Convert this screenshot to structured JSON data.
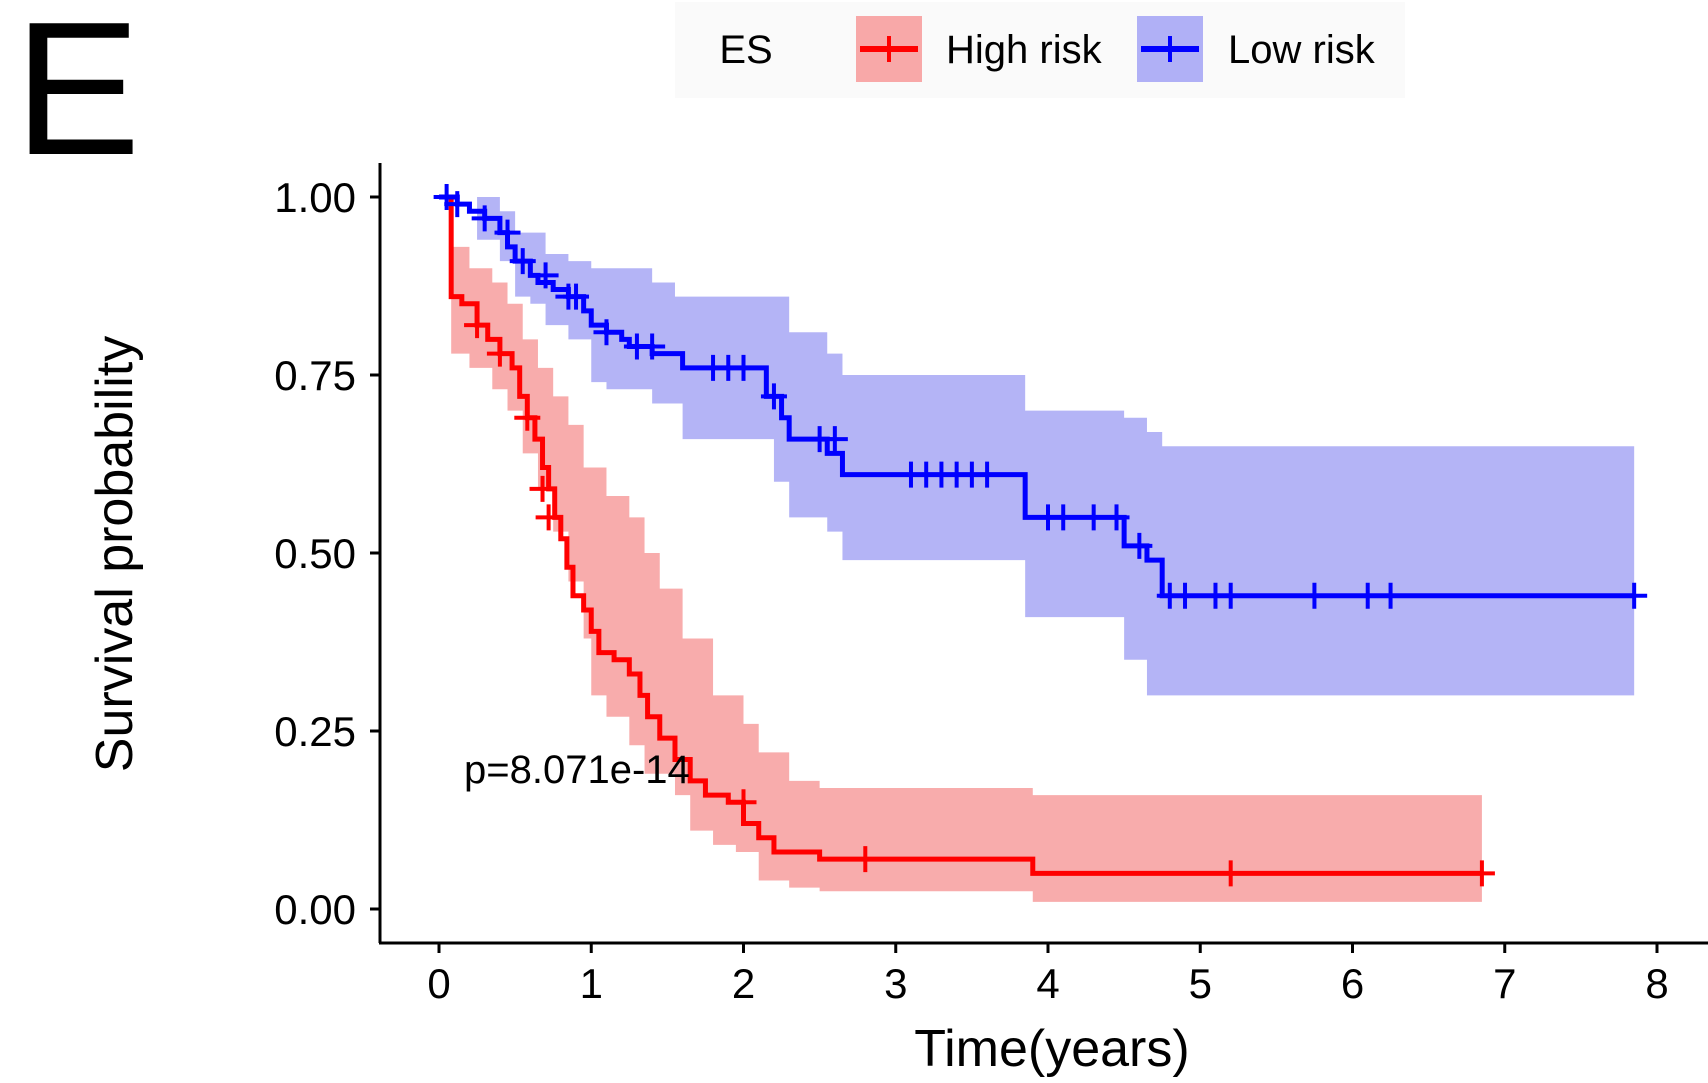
{
  "panel_label": "E",
  "legend": {
    "title": "ES",
    "items": [
      {
        "label": "High risk",
        "color": "#ff0000",
        "fill": "#f8a8a8"
      },
      {
        "label": "Low risk",
        "color": "#0000ff",
        "fill": "#b0b0f6"
      }
    ]
  },
  "annotation": "p=8.071e-14",
  "chart_data": {
    "type": "line",
    "subtype": "kaplan-meier",
    "xlabel": "Time(years)",
    "ylabel": "Survival probability",
    "xlim": [
      0,
      8
    ],
    "ylim": [
      0,
      1
    ],
    "x_ticks": [
      "0",
      "1",
      "2",
      "3",
      "4",
      "5",
      "6",
      "7",
      "8"
    ],
    "y_ticks": [
      "0.00",
      "0.25",
      "0.50",
      "0.75",
      "1.00"
    ],
    "grid": false,
    "legend_position": "top",
    "series": [
      {
        "name": "High risk",
        "color": "#ff0000",
        "ci_color": "#f8a8a8",
        "steps": [
          [
            0,
            1.0
          ],
          [
            0.08,
            0.86
          ],
          [
            0.15,
            0.85
          ],
          [
            0.25,
            0.82
          ],
          [
            0.32,
            0.8
          ],
          [
            0.4,
            0.78
          ],
          [
            0.48,
            0.76
          ],
          [
            0.53,
            0.72
          ],
          [
            0.58,
            0.69
          ],
          [
            0.63,
            0.66
          ],
          [
            0.68,
            0.62
          ],
          [
            0.72,
            0.59
          ],
          [
            0.76,
            0.55
          ],
          [
            0.8,
            0.52
          ],
          [
            0.84,
            0.48
          ],
          [
            0.88,
            0.44
          ],
          [
            0.95,
            0.42
          ],
          [
            1.0,
            0.39
          ],
          [
            1.05,
            0.36
          ],
          [
            1.15,
            0.35
          ],
          [
            1.25,
            0.33
          ],
          [
            1.32,
            0.3
          ],
          [
            1.37,
            0.27
          ],
          [
            1.45,
            0.24
          ],
          [
            1.55,
            0.21
          ],
          [
            1.65,
            0.18
          ],
          [
            1.75,
            0.16
          ],
          [
            1.9,
            0.15
          ],
          [
            2.0,
            0.12
          ],
          [
            2.1,
            0.1
          ],
          [
            2.2,
            0.08
          ],
          [
            2.5,
            0.07
          ],
          [
            3.9,
            0.05
          ],
          [
            6.85,
            0.05
          ]
        ],
        "ci_upper": [
          [
            0,
            1.0
          ],
          [
            0.08,
            0.93
          ],
          [
            0.2,
            0.9
          ],
          [
            0.35,
            0.88
          ],
          [
            0.45,
            0.85
          ],
          [
            0.55,
            0.8
          ],
          [
            0.65,
            0.76
          ],
          [
            0.75,
            0.72
          ],
          [
            0.85,
            0.68
          ],
          [
            0.95,
            0.62
          ],
          [
            1.1,
            0.58
          ],
          [
            1.25,
            0.55
          ],
          [
            1.35,
            0.5
          ],
          [
            1.45,
            0.45
          ],
          [
            1.6,
            0.38
          ],
          [
            1.8,
            0.3
          ],
          [
            2.0,
            0.26
          ],
          [
            2.1,
            0.22
          ],
          [
            2.3,
            0.18
          ],
          [
            2.5,
            0.17
          ],
          [
            3.9,
            0.16
          ],
          [
            6.85,
            0.15
          ]
        ],
        "ci_lower": [
          [
            0,
            1.0
          ],
          [
            0.08,
            0.78
          ],
          [
            0.2,
            0.76
          ],
          [
            0.35,
            0.73
          ],
          [
            0.45,
            0.7
          ],
          [
            0.55,
            0.64
          ],
          [
            0.65,
            0.59
          ],
          [
            0.75,
            0.53
          ],
          [
            0.85,
            0.46
          ],
          [
            0.95,
            0.38
          ],
          [
            1.0,
            0.3
          ],
          [
            1.1,
            0.27
          ],
          [
            1.25,
            0.23
          ],
          [
            1.35,
            0.19
          ],
          [
            1.55,
            0.16
          ],
          [
            1.65,
            0.11
          ],
          [
            1.8,
            0.09
          ],
          [
            1.95,
            0.08
          ],
          [
            2.1,
            0.04
          ],
          [
            2.3,
            0.03
          ],
          [
            2.5,
            0.025
          ],
          [
            3.9,
            0.01
          ],
          [
            6.85,
            0.01
          ]
        ],
        "censor_times": [
          [
            0.25,
            0.82
          ],
          [
            0.4,
            0.78
          ],
          [
            0.58,
            0.69
          ],
          [
            0.68,
            0.59
          ],
          [
            0.72,
            0.55
          ],
          [
            2.0,
            0.15
          ],
          [
            2.8,
            0.07
          ],
          [
            5.2,
            0.05
          ],
          [
            6.85,
            0.05
          ]
        ]
      },
      {
        "name": "Low risk",
        "color": "#0000ff",
        "ci_color": "#b0b0f6",
        "steps": [
          [
            0,
            1.0
          ],
          [
            0.12,
            0.99
          ],
          [
            0.2,
            0.98
          ],
          [
            0.3,
            0.97
          ],
          [
            0.4,
            0.95
          ],
          [
            0.45,
            0.93
          ],
          [
            0.5,
            0.91
          ],
          [
            0.6,
            0.89
          ],
          [
            0.65,
            0.88
          ],
          [
            0.75,
            0.87
          ],
          [
            0.85,
            0.86
          ],
          [
            0.95,
            0.84
          ],
          [
            1.0,
            0.82
          ],
          [
            1.1,
            0.81
          ],
          [
            1.2,
            0.8
          ],
          [
            1.25,
            0.79
          ],
          [
            1.4,
            0.78
          ],
          [
            1.6,
            0.76
          ],
          [
            2.15,
            0.72
          ],
          [
            2.25,
            0.69
          ],
          [
            2.3,
            0.66
          ],
          [
            2.55,
            0.64
          ],
          [
            2.65,
            0.61
          ],
          [
            3.85,
            0.55
          ],
          [
            4.5,
            0.51
          ],
          [
            4.65,
            0.49
          ],
          [
            4.75,
            0.44
          ],
          [
            7.85,
            0.44
          ]
        ],
        "ci_upper": [
          [
            0,
            1.0
          ],
          [
            0.25,
            1.0
          ],
          [
            0.4,
            0.98
          ],
          [
            0.5,
            0.95
          ],
          [
            0.7,
            0.92
          ],
          [
            0.85,
            0.91
          ],
          [
            1.0,
            0.9
          ],
          [
            1.4,
            0.88
          ],
          [
            1.55,
            0.86
          ],
          [
            2.3,
            0.81
          ],
          [
            2.55,
            0.78
          ],
          [
            2.65,
            0.75
          ],
          [
            3.85,
            0.7
          ],
          [
            4.5,
            0.69
          ],
          [
            4.65,
            0.67
          ],
          [
            4.75,
            0.65
          ],
          [
            7.85,
            0.65
          ]
        ],
        "ci_lower": [
          [
            0,
            1.0
          ],
          [
            0.25,
            0.94
          ],
          [
            0.4,
            0.91
          ],
          [
            0.5,
            0.86
          ],
          [
            0.6,
            0.85
          ],
          [
            0.7,
            0.82
          ],
          [
            0.85,
            0.8
          ],
          [
            1.0,
            0.74
          ],
          [
            1.1,
            0.73
          ],
          [
            1.4,
            0.71
          ],
          [
            1.6,
            0.66
          ],
          [
            2.2,
            0.6
          ],
          [
            2.3,
            0.55
          ],
          [
            2.55,
            0.53
          ],
          [
            2.65,
            0.49
          ],
          [
            3.85,
            0.41
          ],
          [
            4.5,
            0.35
          ],
          [
            4.65,
            0.3
          ],
          [
            7.85,
            0.3
          ]
        ],
        "censor_times": [
          [
            0.05,
            1.0
          ],
          [
            0.12,
            0.99
          ],
          [
            0.3,
            0.97
          ],
          [
            0.45,
            0.95
          ],
          [
            0.55,
            0.91
          ],
          [
            0.7,
            0.89
          ],
          [
            0.85,
            0.86
          ],
          [
            0.9,
            0.86
          ],
          [
            1.1,
            0.81
          ],
          [
            1.3,
            0.79
          ],
          [
            1.4,
            0.79
          ],
          [
            1.8,
            0.76
          ],
          [
            1.9,
            0.76
          ],
          [
            2.0,
            0.76
          ],
          [
            2.2,
            0.72
          ],
          [
            2.5,
            0.66
          ],
          [
            2.6,
            0.66
          ],
          [
            3.1,
            0.61
          ],
          [
            3.2,
            0.61
          ],
          [
            3.3,
            0.61
          ],
          [
            3.4,
            0.61
          ],
          [
            3.5,
            0.61
          ],
          [
            3.6,
            0.61
          ],
          [
            4.0,
            0.55
          ],
          [
            4.1,
            0.55
          ],
          [
            4.3,
            0.55
          ],
          [
            4.45,
            0.55
          ],
          [
            4.6,
            0.51
          ],
          [
            4.8,
            0.44
          ],
          [
            4.9,
            0.44
          ],
          [
            5.1,
            0.44
          ],
          [
            5.2,
            0.44
          ],
          [
            5.75,
            0.44
          ],
          [
            6.1,
            0.44
          ],
          [
            6.25,
            0.44
          ],
          [
            7.85,
            0.44
          ]
        ]
      }
    ]
  }
}
